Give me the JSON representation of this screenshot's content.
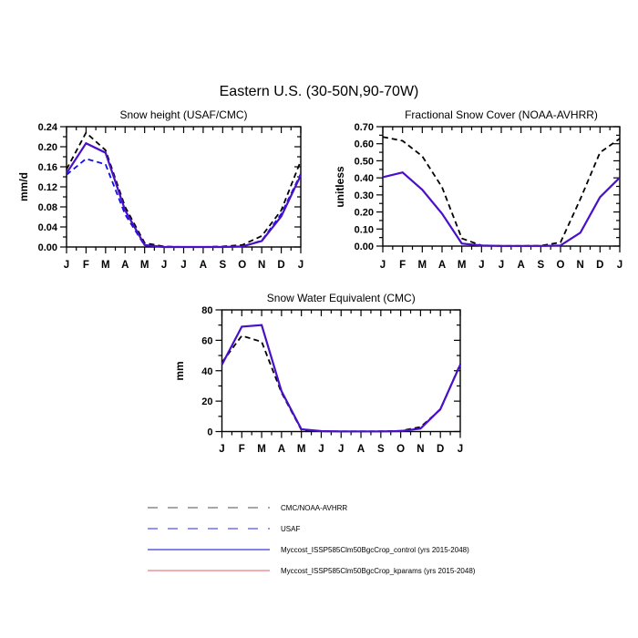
{
  "title": "Eastern U.S. (30-50N,90-70W)",
  "months": [
    "J",
    "F",
    "M",
    "A",
    "M",
    "J",
    "J",
    "A",
    "S",
    "O",
    "N",
    "D",
    "J"
  ],
  "colors": {
    "obs_dashed": "#000000",
    "usaf_dashed": "#0f0fe8",
    "control_solid": "#4a10c8",
    "kparams_solid": "#f29090",
    "axis": "#000000"
  },
  "chart_data": [
    {
      "type": "line",
      "title": "Snow height (USAF/CMC)",
      "ylabel": "mm/d",
      "xlabel": "",
      "ylim": [
        0,
        0.24
      ],
      "yticks": [
        0,
        0.04,
        0.08,
        0.12,
        0.16,
        0.2,
        0.24
      ],
      "ytick_labels": [
        "0.00",
        "0.04",
        "0.08",
        "0.12",
        "0.16",
        "0.20",
        "0.24"
      ],
      "x_tick_labels": [
        "J",
        "F",
        "M",
        "A",
        "M",
        "J",
        "J",
        "A",
        "S",
        "O",
        "N",
        "D",
        "J"
      ],
      "grid": false,
      "series": [
        {
          "name": "CMC/NOAA-AVHRR",
          "color": "#000000",
          "style": "dashed",
          "values": [
            0.155,
            0.228,
            0.193,
            0.08,
            0.008,
            0.001,
            0.0,
            0.0,
            0.001,
            0.004,
            0.022,
            0.073,
            0.172
          ]
        },
        {
          "name": "USAF",
          "color": "#0f0fe8",
          "style": "dashed",
          "values": [
            0.144,
            0.176,
            0.165,
            0.065,
            0.003,
            0.0,
            0.0,
            0.0,
            0.0,
            0.001,
            0.013,
            0.066,
            0.146
          ]
        },
        {
          "name": "Myccost_ISSP585Clm50BgcCrop_control (yrs 2015-2048)",
          "color": "#4a10c8",
          "style": "solid",
          "values": [
            0.147,
            0.207,
            0.188,
            0.073,
            0.004,
            0.0,
            0.0,
            0.0,
            0.0,
            0.001,
            0.012,
            0.061,
            0.143
          ]
        }
      ]
    },
    {
      "type": "line",
      "title": "Fractional Snow Cover (NOAA-AVHRR)",
      "ylabel": "unitless",
      "xlabel": "",
      "ylim": [
        0,
        0.7
      ],
      "yticks": [
        0,
        0.1,
        0.2,
        0.3,
        0.4,
        0.5,
        0.6,
        0.7
      ],
      "ytick_labels": [
        "0.00",
        "0.10",
        "0.20",
        "0.30",
        "0.40",
        "0.50",
        "0.60",
        "0.70"
      ],
      "x_tick_labels": [
        "J",
        "F",
        "M",
        "A",
        "M",
        "J",
        "J",
        "A",
        "S",
        "O",
        "N",
        "D",
        "J"
      ],
      "grid": false,
      "series": [
        {
          "name": "CMC/NOAA-AVHRR",
          "color": "#000000",
          "style": "dashed",
          "values": [
            0.64,
            0.617,
            0.527,
            0.345,
            0.045,
            0.004,
            0.001,
            0.001,
            0.002,
            0.022,
            0.275,
            0.549,
            0.63
          ]
        },
        {
          "name": "Myccost_ISSP585Clm50BgcCrop_control (yrs 2015-2048)",
          "color": "#4a10c8",
          "style": "solid",
          "values": [
            0.404,
            0.432,
            0.33,
            0.19,
            0.015,
            0.003,
            0.001,
            0.001,
            0.001,
            0.004,
            0.078,
            0.287,
            0.402
          ]
        }
      ]
    },
    {
      "type": "line",
      "title": "Snow Water Equivalent (CMC)",
      "ylabel": "mm",
      "xlabel": "",
      "ylim": [
        0,
        80
      ],
      "yticks": [
        0,
        20,
        40,
        60,
        80
      ],
      "ytick_labels": [
        "0",
        "20",
        "40",
        "60",
        "80"
      ],
      "x_tick_labels": [
        "J",
        "F",
        "M",
        "A",
        "M",
        "J",
        "J",
        "A",
        "S",
        "O",
        "N",
        "D",
        "J"
      ],
      "grid": false,
      "series": [
        {
          "name": "CMC/NOAA-AVHRR",
          "color": "#000000",
          "style": "dashed",
          "values": [
            45.5,
            63.0,
            59.0,
            25.5,
            1.0,
            0.2,
            0.1,
            0.1,
            0.2,
            0.5,
            3.0,
            14.5,
            44.5
          ]
        },
        {
          "name": "Myccost_ISSP585Clm50BgcCrop_control (yrs 2015-2048)",
          "color": "#4a10c8",
          "style": "solid",
          "values": [
            44.0,
            69.0,
            70.0,
            26.5,
            1.5,
            0.3,
            0.1,
            0.1,
            0.1,
            0.3,
            2.0,
            14.8,
            44.0
          ]
        }
      ]
    }
  ],
  "legend": {
    "entries": [
      {
        "label": "CMC/NOAA-AVHRR",
        "color": "#8a8a8a",
        "style": "dashed"
      },
      {
        "label": "USAF",
        "color": "#7070f0",
        "style": "dashed"
      },
      {
        "label": "Myccost_ISSP585Clm50BgcCrop_control (yrs 2015-2048)",
        "color": "#5a5ae0",
        "style": "solid"
      },
      {
        "label": "Myccost_ISSP585Clm50BgcCrop_kparams (yrs 2015-2048)",
        "color": "#f29090",
        "style": "solid"
      }
    ]
  }
}
